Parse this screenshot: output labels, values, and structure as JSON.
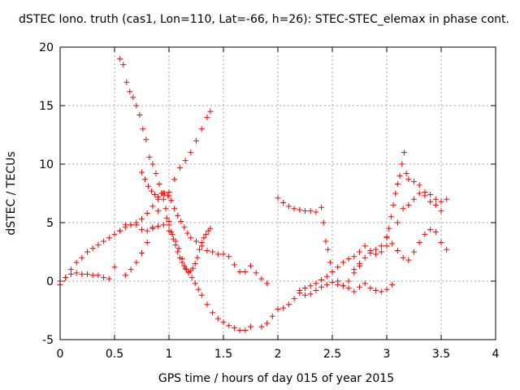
{
  "chart_data": {
    "type": "scatter",
    "title": "dSTEC Iono. truth (cas1, Lon=110, Lat=-66, h=26): STEC-STEC_elemax in phase cont.",
    "xlabel": "GPS time / hours of day 015 of year 2015",
    "ylabel": "dSTEC  / TECUs",
    "xlim": [
      0,
      4
    ],
    "ylim": [
      -5,
      20
    ],
    "xticks": [
      0,
      0.5,
      1,
      1.5,
      2,
      2.5,
      3,
      3.5,
      4
    ],
    "yticks": [
      -5,
      0,
      5,
      10,
      15,
      20
    ],
    "xtick_labels": [
      "0",
      "0.5",
      "1",
      "1.5",
      "2",
      "2.5",
      "3",
      "3.5",
      "4"
    ],
    "ytick_labels": [
      "-5",
      "0",
      "5",
      "10",
      "15",
      "20"
    ],
    "grid": true,
    "marker": "+",
    "color": "#ff0000",
    "series": [
      {
        "x": [
          0.0,
          0.05,
          0.1,
          0.15,
          0.2,
          0.25,
          0.3,
          0.35,
          0.4,
          0.45,
          0.5,
          0.55,
          0.6,
          0.65,
          0.7,
          0.75,
          0.8,
          0.85,
          0.9,
          0.95,
          1.0
        ],
        "y": [
          0.0,
          0.3,
          0.6,
          0.7,
          0.6,
          0.6,
          0.5,
          0.5,
          0.3,
          0.2,
          1.2,
          4.3,
          4.8,
          4.8,
          4.8,
          4.4,
          4.3,
          4.6,
          4.7,
          4.8,
          4.3
        ]
      },
      {
        "x": [
          0.0,
          0.05,
          0.1,
          0.15,
          0.2,
          0.25,
          0.3,
          0.35,
          0.4,
          0.45,
          0.5,
          0.55,
          0.6,
          0.65,
          0.7,
          0.75,
          0.8,
          0.85,
          0.9,
          0.95,
          1.0
        ],
        "y": [
          -0.3,
          0.3,
          1.0,
          1.6,
          2.0,
          2.5,
          2.8,
          3.1,
          3.4,
          3.7,
          4.0,
          4.3,
          4.6,
          4.8,
          5.0,
          5.3,
          5.8,
          6.4,
          7.0,
          7.5,
          7.3
        ]
      },
      {
        "x": [
          0.55,
          0.58,
          0.61,
          0.64,
          0.67,
          0.7,
          0.73,
          0.76,
          0.79,
          0.82,
          0.85,
          0.88,
          0.91,
          0.94,
          0.97,
          1.0,
          1.03,
          1.06,
          1.09,
          1.12,
          1.15,
          1.18,
          1.21,
          1.24,
          1.27,
          1.3,
          1.35,
          1.4,
          1.45,
          1.5,
          1.55,
          1.6,
          1.65,
          1.7,
          1.75
        ],
        "y": [
          19.0,
          18.5,
          17.0,
          16.2,
          15.7,
          15.0,
          14.2,
          13.0,
          12.1,
          10.6,
          10.0,
          9.2,
          8.3,
          7.5,
          6.2,
          5.1,
          4.0,
          3.4,
          2.8,
          1.9,
          1.1,
          0.7,
          0.3,
          -0.2,
          -0.7,
          -1.2,
          -2.0,
          -2.7,
          -3.2,
          -3.5,
          -3.8,
          -4.0,
          -4.2,
          -4.2,
          -3.9
        ]
      },
      {
        "x": [
          0.6,
          0.65,
          0.7,
          0.75,
          0.8,
          0.85,
          0.9,
          0.95,
          1.0,
          1.05,
          1.1,
          1.15,
          1.2,
          1.25,
          1.3,
          1.35,
          1.38
        ],
        "y": [
          0.5,
          1.0,
          1.6,
          2.4,
          3.3,
          4.5,
          6.0,
          7.0,
          7.6,
          8.7,
          9.7,
          10.3,
          11.0,
          12.0,
          13.0,
          14.0,
          14.5
        ]
      },
      {
        "x": [
          0.75,
          0.78,
          0.81,
          0.84,
          0.87,
          0.9,
          0.93,
          0.96,
          0.99,
          1.02,
          1.05,
          1.08,
          1.11,
          1.14,
          1.17,
          1.2,
          1.25,
          1.3,
          1.35,
          1.4,
          1.45,
          1.5,
          1.55,
          1.6,
          1.65,
          1.7,
          1.75,
          1.8,
          1.85,
          1.9
        ],
        "y": [
          9.3,
          8.7,
          8.1,
          7.7,
          7.4,
          7.2,
          7.5,
          7.5,
          7.3,
          6.9,
          6.2,
          5.6,
          5.1,
          4.6,
          4.1,
          3.7,
          3.4,
          3.0,
          2.6,
          2.5,
          2.3,
          2.3,
          2.1,
          1.4,
          0.8,
          0.8,
          1.3,
          0.7,
          0.2,
          -0.2
        ]
      },
      {
        "x": [
          0.98,
          1.0,
          1.02,
          1.04,
          1.06,
          1.08,
          1.1,
          1.12,
          1.14,
          1.16,
          1.18,
          1.2,
          1.22,
          1.24,
          1.26,
          1.28,
          1.3,
          1.32,
          1.34,
          1.36,
          1.38
        ],
        "y": [
          5.4,
          4.8,
          4.2,
          3.6,
          3.1,
          2.5,
          2.0,
          1.6,
          1.3,
          1.0,
          0.8,
          0.9,
          1.1,
          1.5,
          2.0,
          2.7,
          3.3,
          3.7,
          4.0,
          4.3,
          4.5
        ]
      },
      {
        "x": [
          1.85,
          1.9,
          1.95,
          2.0,
          2.05,
          2.1,
          2.15,
          2.2,
          2.25,
          2.3,
          2.35,
          2.4,
          2.45,
          2.5,
          2.55,
          2.6,
          2.65,
          2.7,
          2.75,
          2.8,
          2.85,
          2.9,
          2.95,
          3.0
        ],
        "y": [
          -3.9,
          -3.6,
          -3.0,
          -2.4,
          -2.3,
          -2.0,
          -1.5,
          -1.0,
          -0.6,
          -0.4,
          -0.2,
          0.1,
          0.4,
          0.8,
          1.2,
          1.6,
          1.9,
          2.1,
          2.5,
          3.0,
          2.6,
          2.3,
          2.5,
          3.0
        ]
      },
      {
        "x": [
          2.0,
          2.05,
          2.1,
          2.15,
          2.2,
          2.25,
          2.3,
          2.35,
          2.4,
          2.42,
          2.44,
          2.46,
          2.48,
          2.5,
          2.55,
          2.6,
          2.65,
          2.7,
          2.75
        ],
        "y": [
          7.1,
          6.7,
          6.4,
          6.2,
          6.1,
          6.0,
          6.0,
          5.9,
          6.3,
          5.0,
          3.4,
          2.7,
          1.6,
          0.8,
          -0.3,
          -0.4,
          0.0,
          0.7,
          1.3
        ]
      },
      {
        "x": [
          2.2,
          2.25,
          2.3,
          2.35,
          2.4,
          2.45,
          2.5,
          2.55,
          2.6,
          2.65,
          2.7,
          2.75,
          2.8,
          2.85,
          2.9,
          2.95,
          3.0,
          3.05
        ],
        "y": [
          -0.8,
          -1.2,
          -1.1,
          -0.8,
          -0.5,
          -0.3,
          -0.1,
          0.0,
          -0.4,
          -0.6,
          -0.9,
          -0.5,
          -0.2,
          -0.6,
          -0.8,
          -0.9,
          -0.7,
          -0.3
        ]
      },
      {
        "x": [
          2.7,
          2.75,
          2.8,
          2.85,
          2.9,
          2.95,
          3.0,
          3.02,
          3.04,
          3.06,
          3.08,
          3.1,
          3.12,
          3.14,
          3.16,
          3.18,
          3.2,
          3.25,
          3.3,
          3.35,
          3.4,
          3.45,
          3.5,
          3.55
        ],
        "y": [
          1.0,
          1.5,
          2.0,
          2.4,
          2.7,
          3.0,
          3.8,
          4.5,
          5.5,
          6.5,
          7.5,
          8.3,
          9.0,
          10.0,
          11.0,
          9.2,
          8.7,
          8.5,
          8.2,
          7.6,
          7.4,
          7.0,
          6.8,
          7.0
        ]
      },
      {
        "x": [
          3.0,
          3.05,
          3.1,
          3.15,
          3.2,
          3.25,
          3.3,
          3.35,
          3.4,
          3.45,
          3.5,
          3.55
        ],
        "y": [
          3.7,
          3.2,
          2.6,
          2.0,
          1.8,
          2.5,
          3.3,
          4.0,
          4.4,
          4.2,
          3.3,
          2.7
        ]
      },
      {
        "x": [
          3.1,
          3.15,
          3.2,
          3.25,
          3.3,
          3.35,
          3.4,
          3.45,
          3.5
        ],
        "y": [
          5.0,
          6.2,
          6.5,
          7.0,
          7.5,
          7.3,
          6.8,
          6.5,
          6.0
        ]
      }
    ]
  }
}
